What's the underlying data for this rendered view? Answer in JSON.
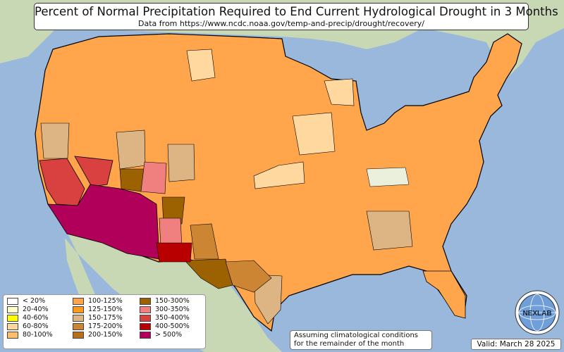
{
  "title": "Percent of Normal Precipitation Required to End Current Hydrological Drought in 3 Months",
  "subtitle": "Data from https://www.ncdc.noaa.gov/temp-and-precip/drought/recovery/",
  "legend": [
    {
      "label": "< 20%",
      "color": "#ffffff"
    },
    {
      "label": "20-40%",
      "color": "#ffffcc"
    },
    {
      "label": "40-60%",
      "color": "#ffff00"
    },
    {
      "label": "60-80%",
      "color": "#ffd8a0"
    },
    {
      "label": "80-100%",
      "color": "#ffbf6a"
    },
    {
      "label": "100-125%",
      "color": "#ffa64d"
    },
    {
      "label": "125-150%",
      "color": "#ff9a1a"
    },
    {
      "label": "150-175%",
      "color": "#ddb585"
    },
    {
      "label": "175-200%",
      "color": "#cc8533"
    },
    {
      "label": "200-150%",
      "color": "#b86f1a"
    },
    {
      "label": "150-300%",
      "color": "#9c6100"
    },
    {
      "label": "300-350%",
      "color": "#f08080"
    },
    {
      "label": "350-400%",
      "color": "#d94040"
    },
    {
      "label": "400-500%",
      "color": "#b80000"
    },
    {
      "label": "> 500%",
      "color": "#b0005a"
    }
  ],
  "note_line1": "Assuming climatological conditions",
  "note_line2": "for the remainder of the month",
  "valid": "Valid: March 28 2025",
  "logo_text": "NEXLAB",
  "logo_icon": "nexlab-globe-icon",
  "colors": {
    "ocean": "#9ab8dc",
    "land": "#c9d8b4",
    "border": "#000000"
  }
}
